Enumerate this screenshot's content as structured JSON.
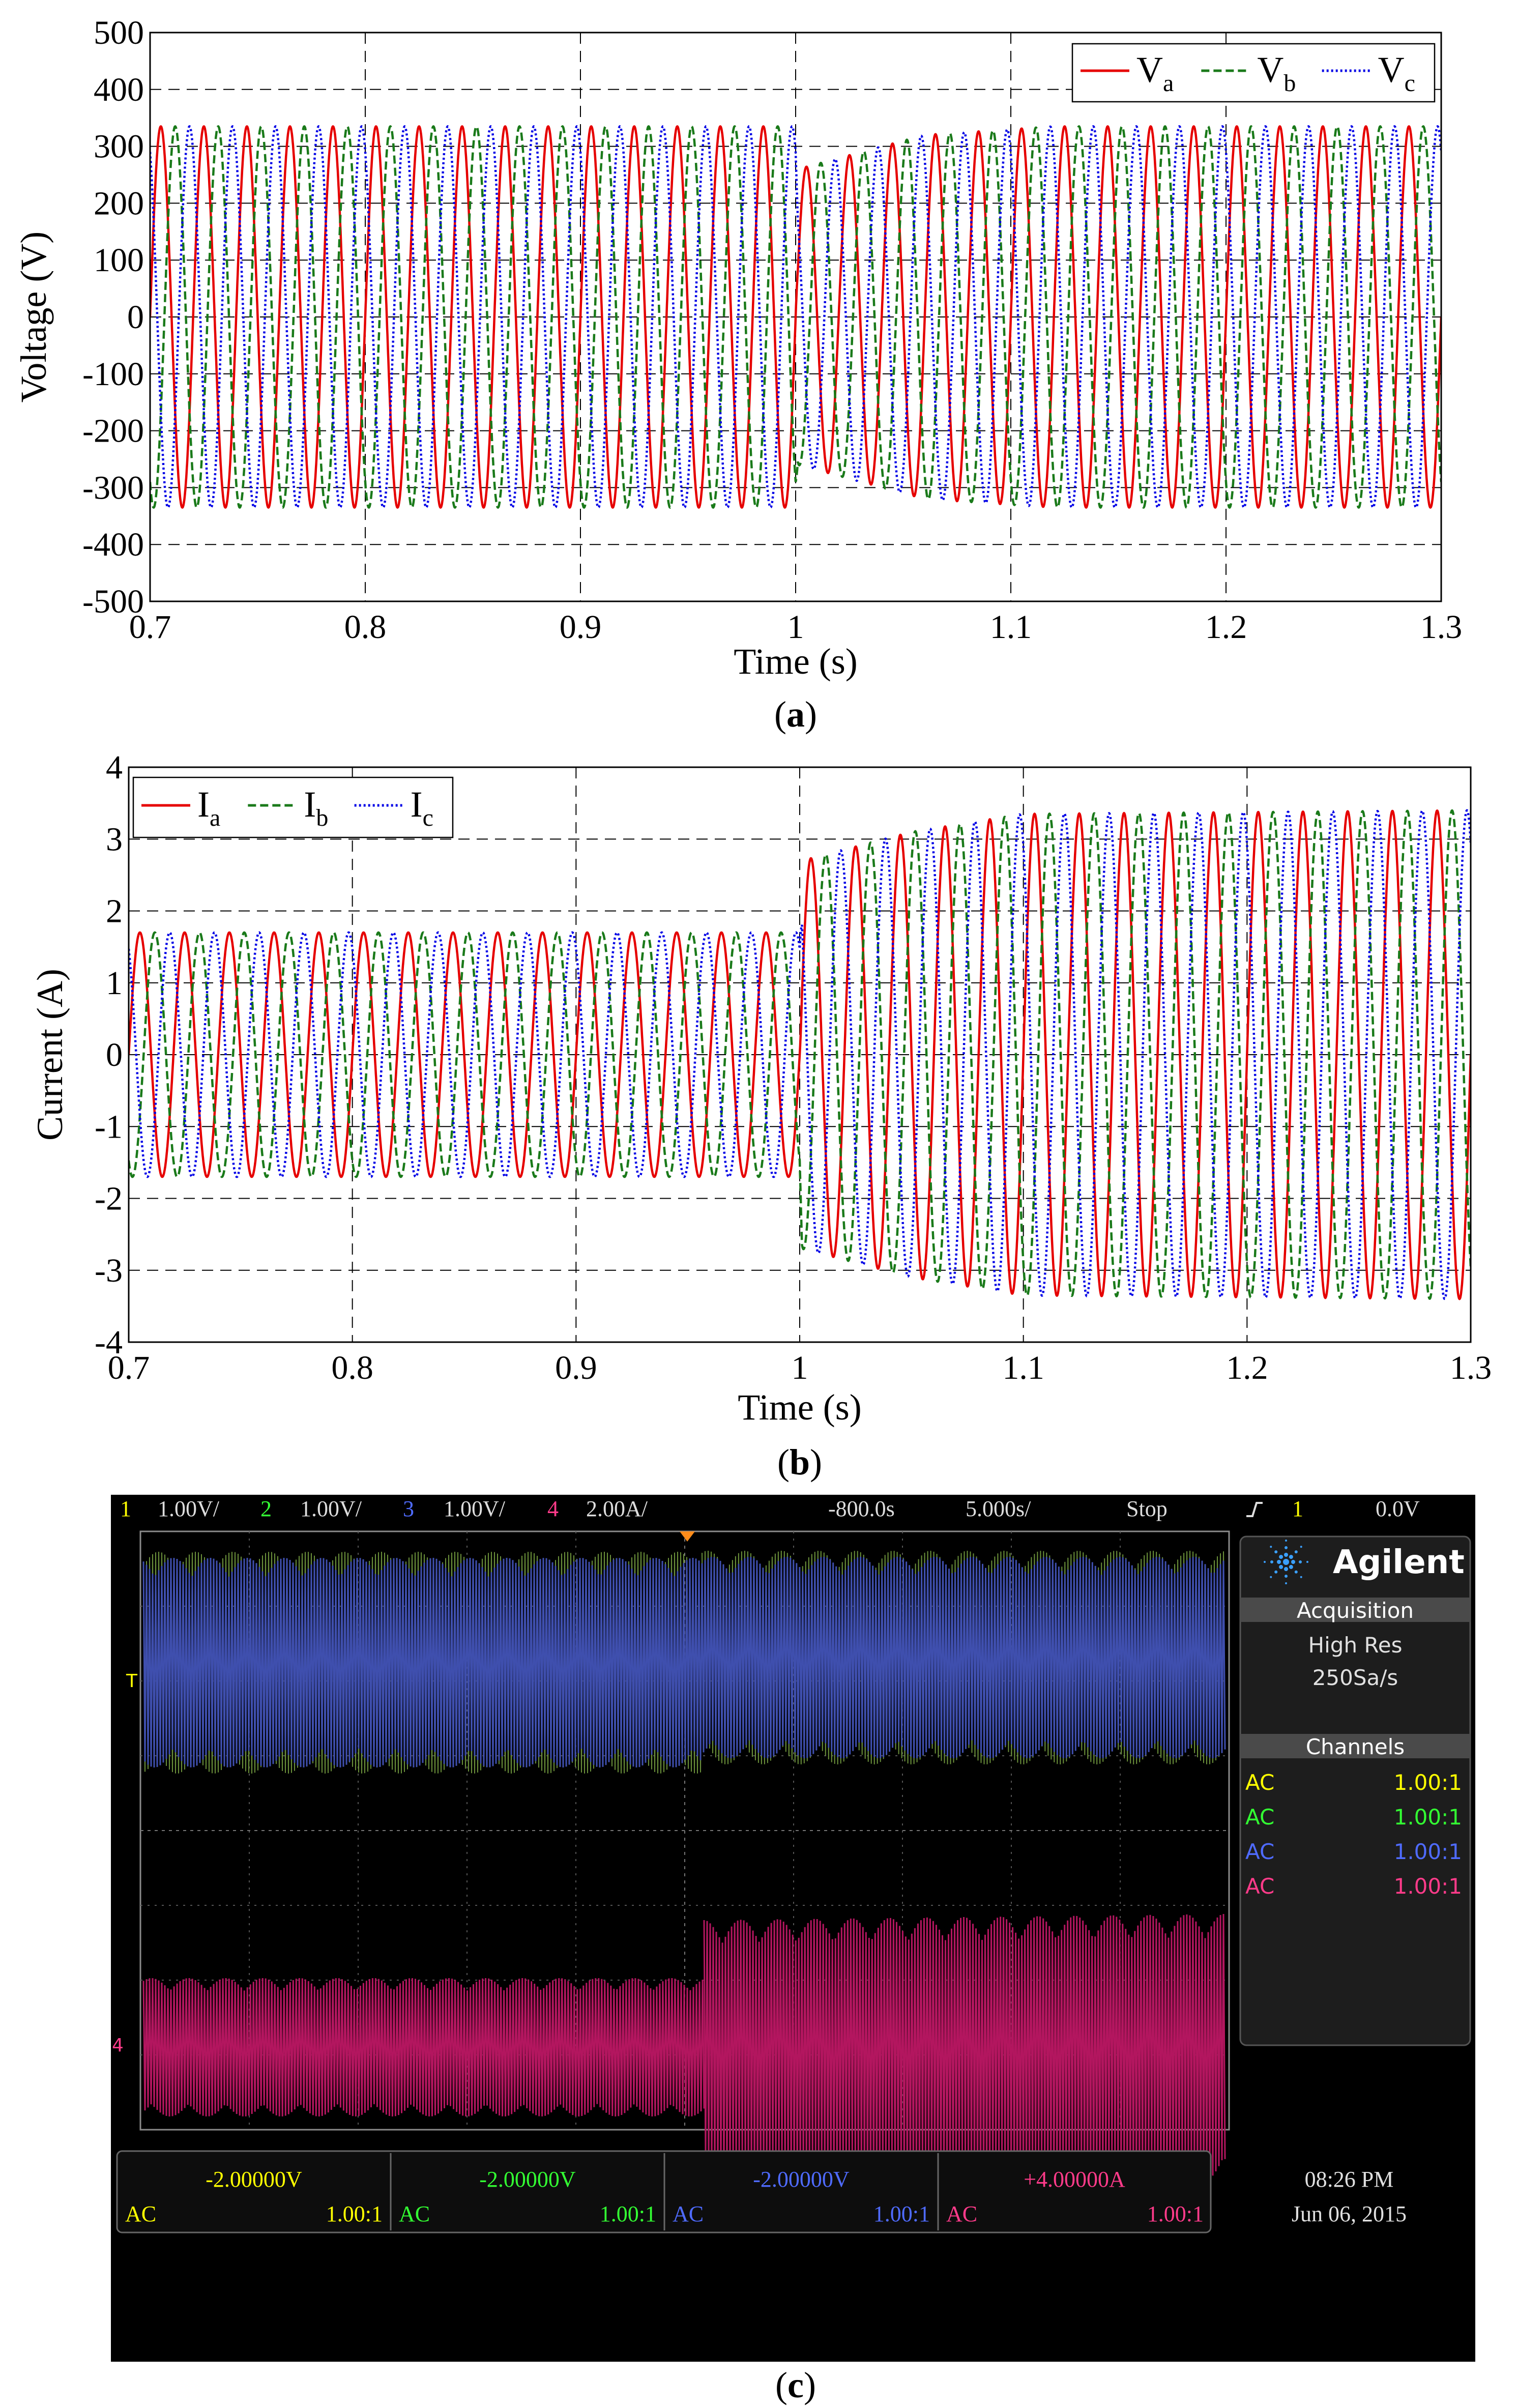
{
  "chart_data": [
    {
      "type": "line",
      "panel": "a",
      "caption": "a",
      "xlabel": "Time (s)",
      "ylabel": "Voltage (V)",
      "xlim": [
        0.7,
        1.3
      ],
      "ylim": [
        -500,
        500
      ],
      "xticks": [
        "0.7",
        "0.8",
        "0.9",
        "1",
        "1.1",
        "1.2",
        "1.3"
      ],
      "yticks": [
        "500",
        "400",
        "300",
        "200",
        "100",
        "0",
        "-100",
        "-200",
        "-300",
        "-400",
        "-500"
      ],
      "grid": true,
      "legend_position": "top-right",
      "frequency_hz": 50,
      "series": [
        {
          "name": "Va",
          "base": "V",
          "sub": "a",
          "phase_deg": 0,
          "color": "#e60000",
          "dash": "solid",
          "envelope": [
            {
              "t": 0.7,
              "amp": 335
            },
            {
              "t": 1.0,
              "amp": 335
            },
            {
              "t": 1.001,
              "amp": 260
            },
            {
              "t": 1.06,
              "amp": 320
            },
            {
              "t": 1.12,
              "amp": 335
            },
            {
              "t": 1.3,
              "amp": 335
            }
          ]
        },
        {
          "name": "Vb",
          "base": "V",
          "sub": "b",
          "phase_deg": -120,
          "color": "#1a7a1a",
          "dash": "dashed",
          "envelope": [
            {
              "t": 0.7,
              "amp": 335
            },
            {
              "t": 1.0,
              "amp": 335
            },
            {
              "t": 1.001,
              "amp": 260
            },
            {
              "t": 1.06,
              "amp": 320
            },
            {
              "t": 1.12,
              "amp": 335
            },
            {
              "t": 1.3,
              "amp": 335
            }
          ]
        },
        {
          "name": "Vc",
          "base": "V",
          "sub": "c",
          "phase_deg": 120,
          "color": "#0000e6",
          "dash": "dotted",
          "envelope": [
            {
              "t": 0.7,
              "amp": 335
            },
            {
              "t": 1.0,
              "amp": 335
            },
            {
              "t": 1.001,
              "amp": 260
            },
            {
              "t": 1.06,
              "amp": 320
            },
            {
              "t": 1.12,
              "amp": 335
            },
            {
              "t": 1.3,
              "amp": 335
            }
          ]
        }
      ]
    },
    {
      "type": "line",
      "panel": "b",
      "caption": "b",
      "xlabel": "Time (s)",
      "ylabel": "Current (A)",
      "xlim": [
        0.7,
        1.3
      ],
      "ylim": [
        -4,
        4
      ],
      "xticks": [
        "0.7",
        "0.8",
        "0.9",
        "1",
        "1.1",
        "1.2",
        "1.3"
      ],
      "yticks": [
        "4",
        "3",
        "2",
        "1",
        "0",
        "-1",
        "-2",
        "-3",
        "-4"
      ],
      "grid": true,
      "legend_position": "top-left",
      "frequency_hz": 50,
      "series": [
        {
          "name": "Ia",
          "base": "I",
          "sub": "a",
          "phase_deg": 0,
          "color": "#e60000",
          "dash": "solid",
          "envelope": [
            {
              "t": 0.7,
              "amp": 1.7
            },
            {
              "t": 1.0,
              "amp": 1.7
            },
            {
              "t": 1.001,
              "amp": 2.7
            },
            {
              "t": 1.05,
              "amp": 3.1
            },
            {
              "t": 1.1,
              "amp": 3.35
            },
            {
              "t": 1.3,
              "amp": 3.4
            }
          ]
        },
        {
          "name": "Ib",
          "base": "I",
          "sub": "b",
          "phase_deg": -120,
          "color": "#1a7a1a",
          "dash": "dashed",
          "envelope": [
            {
              "t": 0.7,
              "amp": 1.7
            },
            {
              "t": 1.0,
              "amp": 1.7
            },
            {
              "t": 1.001,
              "amp": 2.7
            },
            {
              "t": 1.05,
              "amp": 3.1
            },
            {
              "t": 1.1,
              "amp": 3.35
            },
            {
              "t": 1.3,
              "amp": 3.4
            }
          ]
        },
        {
          "name": "Ic",
          "base": "I",
          "sub": "c",
          "phase_deg": 120,
          "color": "#0000e6",
          "dash": "dotted",
          "envelope": [
            {
              "t": 0.7,
              "amp": 1.7
            },
            {
              "t": 1.0,
              "amp": 1.7
            },
            {
              "t": 1.001,
              "amp": 2.7
            },
            {
              "t": 1.05,
              "amp": 3.1
            },
            {
              "t": 1.1,
              "amp": 3.35
            },
            {
              "t": 1.3,
              "amp": 3.4
            }
          ]
        }
      ]
    }
  ],
  "oscilloscope": {
    "caption": "c",
    "channels_bar": [
      {
        "num": "1",
        "scale": "1.00V/",
        "color": "#ffff00"
      },
      {
        "num": "2",
        "scale": "1.00V/",
        "color": "#33ff33"
      },
      {
        "num": "3",
        "scale": "1.00V/",
        "color": "#4f6bff"
      },
      {
        "num": "4",
        "scale": "2.00A/",
        "color": "#ff3b8a"
      }
    ],
    "delay": "-800.0s",
    "timebase": "5.000s/",
    "run_state": "Stop",
    "trigger_icon": "trigger-edge-icon",
    "trigger_channel": "1",
    "trigger_level": "0.0V",
    "brand": "Agilent",
    "acquisition_title": "Acquisition",
    "acquisition_mode": "High Res",
    "sample_rate": "250Sa/s",
    "channels_title": "Channels",
    "channel_table": [
      {
        "coupling": "AC",
        "ratio": "1.00:1",
        "color": "#ffff00"
      },
      {
        "coupling": "AC",
        "ratio": "1.00:1",
        "color": "#33ff33"
      },
      {
        "coupling": "AC",
        "ratio": "1.00:1",
        "color": "#4f6bff"
      },
      {
        "coupling": "AC",
        "ratio": "1.00:1",
        "color": "#ff3b8a"
      }
    ],
    "offsets": [
      {
        "value": "-2.00000V",
        "coupling": "AC",
        "ratio": "1.00:1",
        "color": "#ffff00"
      },
      {
        "value": "-2.00000V",
        "coupling": "AC",
        "ratio": "1.00:1",
        "color": "#33ff33"
      },
      {
        "value": "-2.00000V",
        "coupling": "AC",
        "ratio": "1.00:1",
        "color": "#4f6bff"
      },
      {
        "value": "+4.00000A",
        "coupling": "AC",
        "ratio": "1.00:1",
        "color": "#ff3b8a"
      }
    ],
    "clock_time": "08:26 PM",
    "clock_date": "Jun 06, 2015",
    "trace_voltage_colors": [
      "#3f4fae",
      "#6a8f3a"
    ],
    "trace_current_color": "#b3165f",
    "marker_t": "T",
    "marker_4": "4"
  }
}
